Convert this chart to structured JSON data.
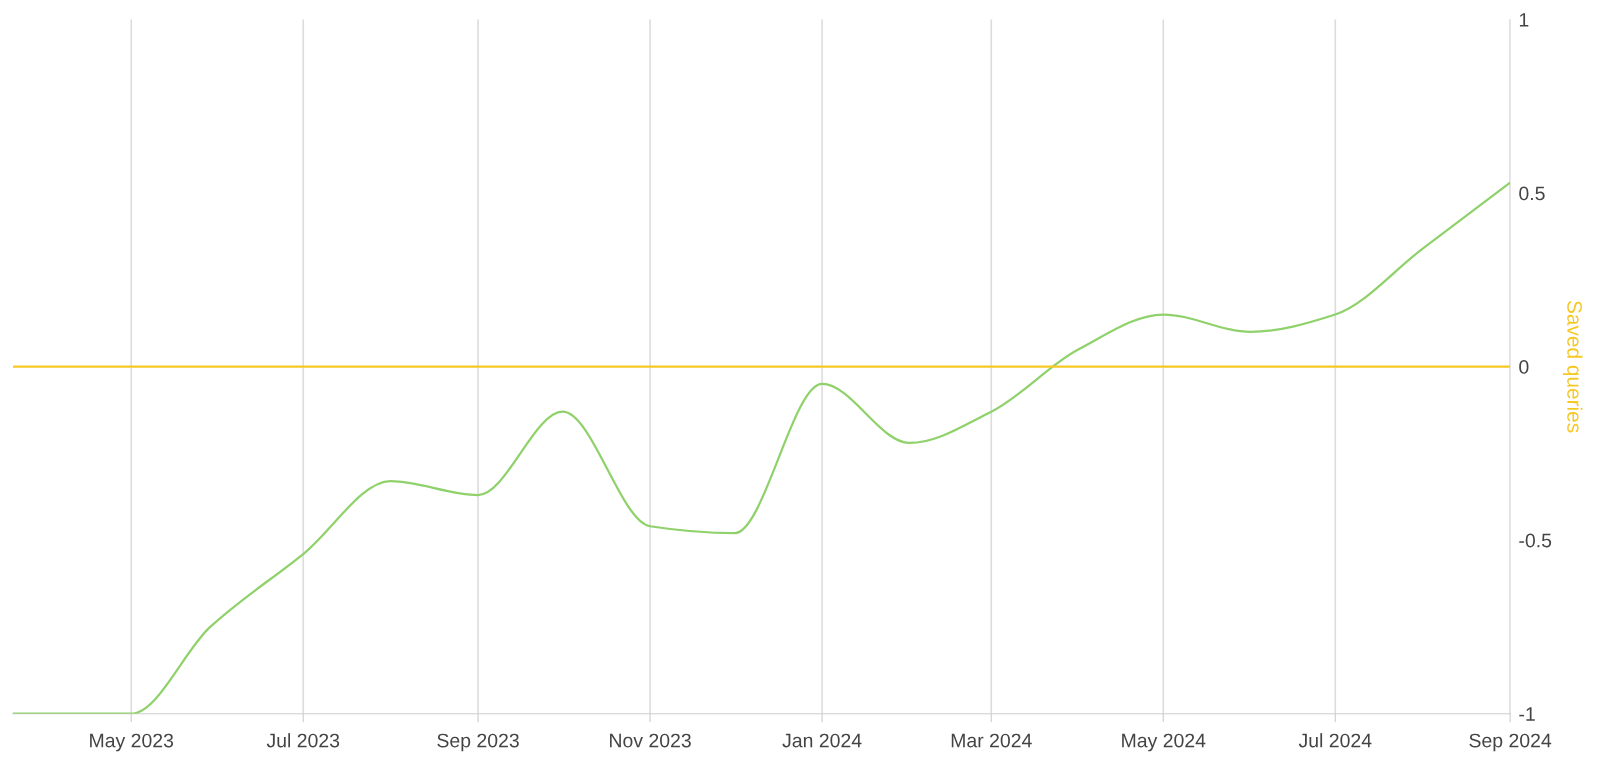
{
  "chart_data": {
    "type": "line",
    "ylabel": "Saved queries",
    "x": [
      "2023-03-20",
      "2023-05-01",
      "2023-05-29",
      "2023-07-01",
      "2023-08-01",
      "2023-09-01",
      "2023-10-01",
      "2023-11-01",
      "2023-12-01",
      "2024-01-01",
      "2024-02-01",
      "2024-03-01",
      "2024-04-01",
      "2024-05-01",
      "2024-06-01",
      "2024-07-01",
      "2024-08-01",
      "2024-09-01"
    ],
    "series": [
      {
        "color": "#8fd16a",
        "values": [
          -1,
          -1,
          -0.75,
          -0.54,
          -0.33,
          -0.37,
          -0.13,
          -0.46,
          -0.48,
          -0.05,
          -0.22,
          -0.13,
          0.05,
          0.15,
          0.1,
          0.15,
          0.34,
          0.53
        ]
      },
      {
        "color": "#f5c825",
        "values": [
          0,
          0,
          0,
          0,
          0,
          0,
          0,
          0,
          0,
          0,
          0,
          0,
          0,
          0,
          0,
          0,
          0,
          0
        ]
      }
    ],
    "xlim": [
      "2023-03-20",
      "2024-09-01"
    ],
    "xticks": [
      {
        "value": "2023-05-01",
        "label": "May 2023"
      },
      {
        "value": "2023-07-01",
        "label": "Jul 2023"
      },
      {
        "value": "2023-09-01",
        "label": "Sep 2023"
      },
      {
        "value": "2023-11-01",
        "label": "Nov 2023"
      },
      {
        "value": "2024-01-01",
        "label": "Jan 2024"
      },
      {
        "value": "2024-03-01",
        "label": "Mar 2024"
      },
      {
        "value": "2024-05-01",
        "label": "May 2024"
      },
      {
        "value": "2024-07-01",
        "label": "Jul 2024"
      },
      {
        "value": "2024-09-01",
        "label": "Sep 2024"
      }
    ],
    "ylim": [
      -1,
      1
    ],
    "yticks": [
      {
        "value": -1,
        "label": "-1"
      },
      {
        "value": -0.5,
        "label": "-0.5"
      },
      0,
      0.5,
      1
    ],
    "grid": "x",
    "marker": "none",
    "line_style": "solid"
  }
}
